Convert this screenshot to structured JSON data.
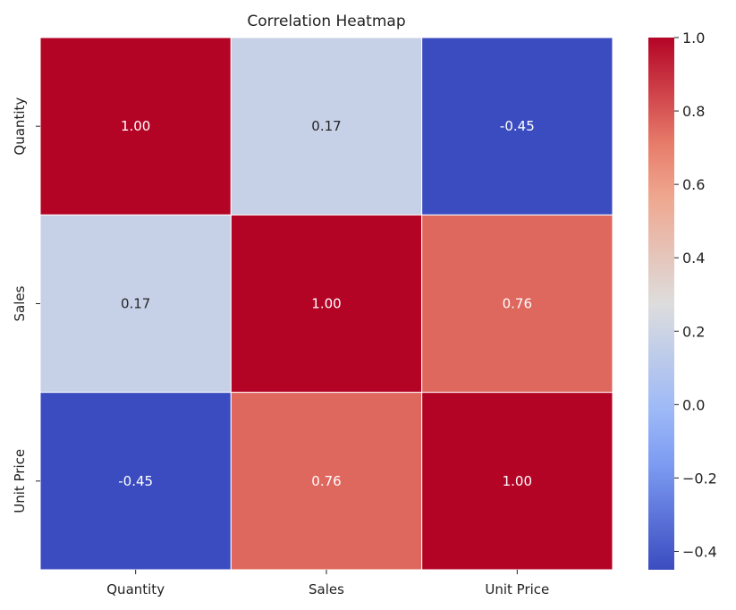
{
  "chart_data": {
    "type": "heatmap",
    "title": "Correlation Heatmap",
    "rows": [
      "Quantity",
      "Sales",
      "Unit Price"
    ],
    "columns": [
      "Quantity",
      "Sales",
      "Unit Price"
    ],
    "values": [
      [
        1.0,
        0.17,
        -0.45
      ],
      [
        0.17,
        1.0,
        0.76
      ],
      [
        -0.45,
        0.76,
        1.0
      ]
    ],
    "annotations": [
      [
        "1.00",
        "0.17",
        "-0.45"
      ],
      [
        "0.17",
        "1.00",
        "0.76"
      ],
      [
        "-0.45",
        "0.76",
        "1.00"
      ]
    ],
    "colormap": "coolwarm",
    "colorbar": {
      "range": [
        -0.45,
        1.0
      ],
      "ticks": [
        -0.4,
        -0.2,
        0.0,
        0.2,
        0.4,
        0.6,
        0.8,
        1.0
      ],
      "tick_labels": [
        "−0.4",
        "−0.2",
        "0.0",
        "0.2",
        "0.4",
        "0.6",
        "0.8",
        "1.0"
      ]
    },
    "grid_line_color": "#ffffff"
  }
}
